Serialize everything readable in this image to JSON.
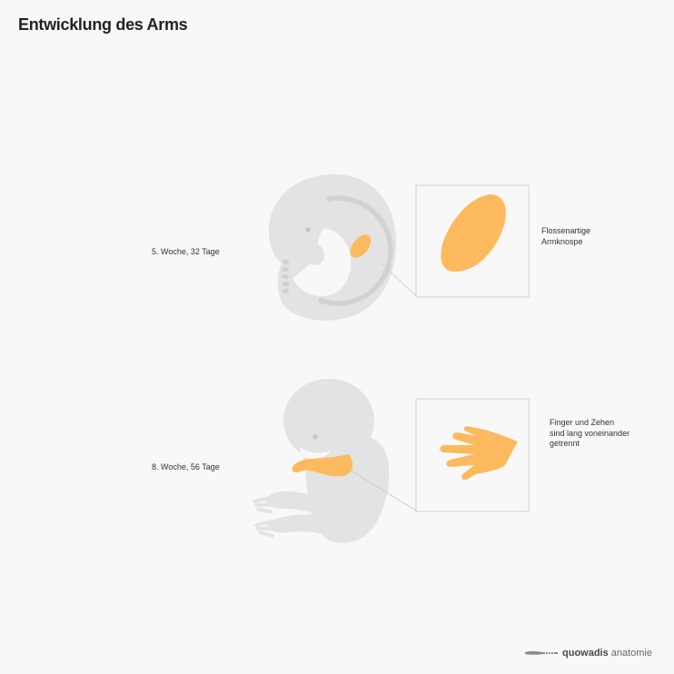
{
  "title": "Entwicklung des Arms",
  "stages": [
    {
      "label": "5. Woche, 32 Tage",
      "description_lines": [
        "Flossenartige",
        "Armknospe"
      ]
    },
    {
      "label": "8. Woche, 56 Tage",
      "description_lines": [
        "Finger und Zehen",
        "sind lang voneinander",
        "getrennt"
      ]
    }
  ],
  "brand": {
    "name_bold": "quowadis",
    "name_light": "anatomie",
    "icon": "scalpel-icon"
  },
  "colors": {
    "background": "#f8f8f8",
    "embryo": "#e3e3e3",
    "somites": "#d2d2d2",
    "highlight": "#fdb95e",
    "frame": "#d0d0d0"
  }
}
